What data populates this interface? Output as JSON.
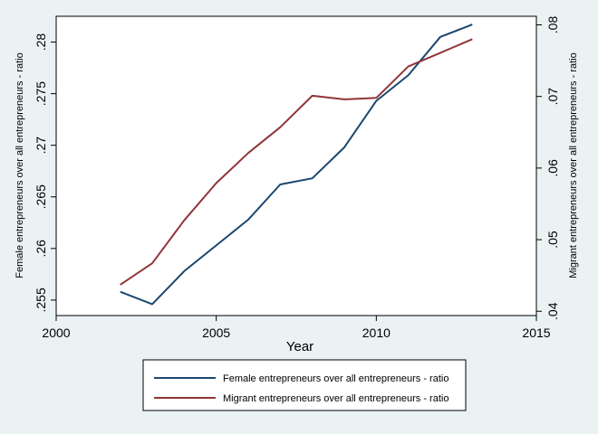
{
  "chart_data": {
    "type": "line",
    "xlabel": "Year",
    "ylabel_left": "Female entrepreneurs over all entrepreneurs - ratio",
    "ylabel_right": "Migrant entrepreneurs over all entrepreneurs - ratio",
    "xlim": [
      2000,
      2015
    ],
    "ylim_left": [
      0.2535,
      0.2825
    ],
    "ylim_right": [
      0.0394,
      0.0812
    ],
    "x_ticks": [
      2000,
      2005,
      2010,
      2015
    ],
    "x_tick_labels": [
      "2000",
      "2005",
      "2010",
      "2015"
    ],
    "y_left_ticks": [
      0.255,
      0.26,
      0.265,
      0.27,
      0.275,
      0.28
    ],
    "y_left_tick_labels": [
      ".255",
      ".26",
      ".265",
      ".27",
      ".275",
      ".28"
    ],
    "y_right_ticks": [
      0.04,
      0.05,
      0.06,
      0.07,
      0.08
    ],
    "y_right_tick_labels": [
      ".04",
      ".05",
      ".06",
      ".07",
      ".08"
    ],
    "grid": false,
    "legend_position": "bottom",
    "x": [
      2002,
      2003,
      2004,
      2005,
      2006,
      2007,
      2008,
      2009,
      2010,
      2011,
      2012,
      2013
    ],
    "series": [
      {
        "name": "Female entrepreneurs over all entrepreneurs - ratio",
        "axis": "left",
        "color": "#1a476f",
        "values": [
          0.2558,
          0.2546,
          0.2578,
          0.2603,
          0.2628,
          0.2662,
          0.2668,
          0.2698,
          0.2743,
          0.2768,
          0.2805,
          0.2817
        ]
      },
      {
        "name": "Migrant entrepreneurs over all entrepreneurs - ratio",
        "axis": "right",
        "color": "#90353b",
        "values": [
          0.0437,
          0.0467,
          0.0527,
          0.0579,
          0.0621,
          0.0657,
          0.0701,
          0.0696,
          0.0698,
          0.0742,
          0.0761,
          0.078
        ]
      }
    ]
  }
}
